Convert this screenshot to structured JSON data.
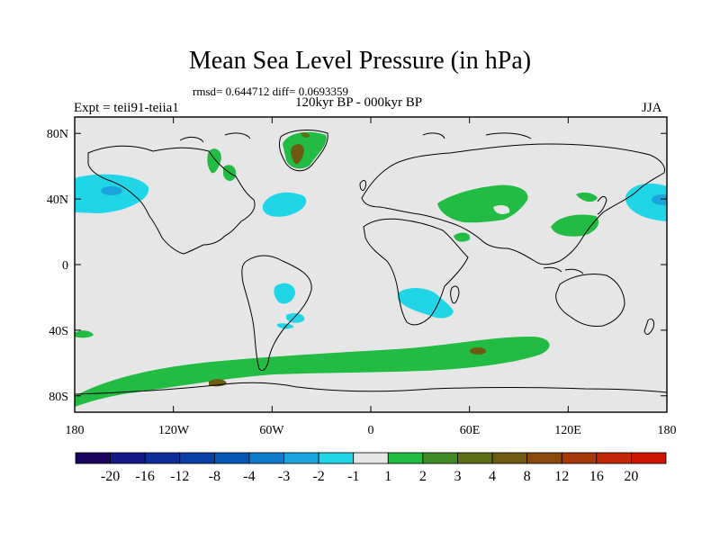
{
  "title": "Mean Sea Level Pressure (in hPa)",
  "stats": "rmsd= 0.644712 diff= 0.0693359",
  "left_label": "Expt = teii91-teiia1",
  "center_label": "120kyr BP - 000kyr BP",
  "right_label": "JJA",
  "lat_ticks": [
    "80N",
    "40N",
    "0",
    "40S",
    "80S"
  ],
  "lon_ticks": [
    "180",
    "120W",
    "60W",
    "0",
    "60E",
    "120E",
    "180"
  ],
  "colorbar": {
    "labels": [
      "-20",
      "-16",
      "-12",
      "-8",
      "-4",
      "-3",
      "-2",
      "-1",
      "1",
      "2",
      "3",
      "4",
      "8",
      "12",
      "16",
      "20"
    ],
    "colors": [
      "#1c0560",
      "#141a86",
      "#0f2d97",
      "#0a3fa5",
      "#0656b4",
      "#0e7cc8",
      "#1aa6dc",
      "#20d6e6",
      "#e6e6e6",
      "#22bb44",
      "#3f8c26",
      "#5e6e14",
      "#6e5a10",
      "#8a4a0e",
      "#a5390c",
      "#c22808",
      "#cc1400"
    ]
  },
  "chart_data": {
    "type": "map",
    "variable": "Mean Sea Level Pressure (in hPa)",
    "experiment": "teii91-teiia1",
    "period": "120kyr BP - 000kyr BP",
    "season": "JJA",
    "rmsd": 0.644712,
    "diff": 0.0693359,
    "lon_range": [
      -180,
      180
    ],
    "lat_range": [
      -90,
      90
    ],
    "regions": [
      {
        "area": "North Pacific (east)",
        "level_range": "-3 to -1",
        "center_level": "-4 to -3"
      },
      {
        "area": "North Pacific (west)",
        "level_range": "-3 to -1",
        "center_level": "-4 to -3"
      },
      {
        "area": "North Atlantic",
        "level_range": "-2 to -1"
      },
      {
        "area": "Greenland",
        "level_range": "1 to 2",
        "center_level": "4 to 8"
      },
      {
        "area": "Canadian Arctic / Hudson Bay",
        "level_range": "1 to 2"
      },
      {
        "area": "Mediterranean / Middle East",
        "level_range": "1 to 2"
      },
      {
        "area": "East China / Japan",
        "level_range": "1 to 2"
      },
      {
        "area": "South America (SE)",
        "level_range": "-2 to -1"
      },
      {
        "area": "Southern Africa / Mozambique Channel",
        "level_range": "-2 to -1"
      },
      {
        "area": "Southern Ocean (Antarctic belt)",
        "level_range": "1 to 2",
        "center_level": "3 to 4"
      }
    ]
  }
}
